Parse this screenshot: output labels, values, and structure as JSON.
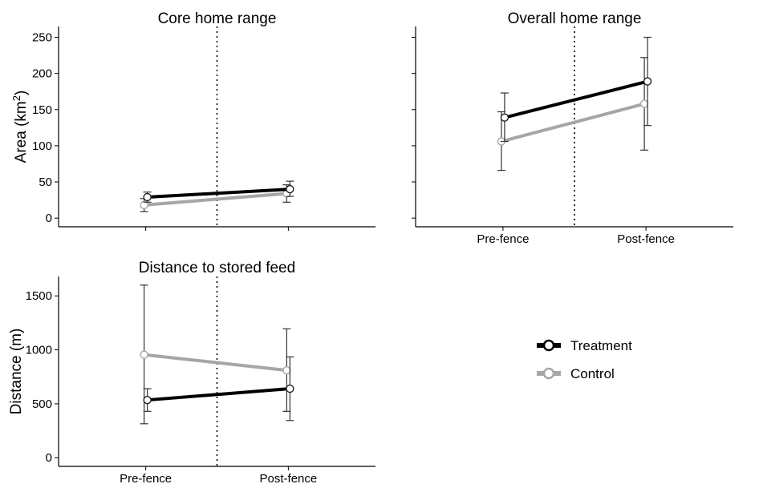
{
  "chart_data": [
    {
      "type": "line",
      "title": "Core home range",
      "ylabel": "Area (km",
      "ylabel_sup": "2",
      "ylabel_close": ")",
      "categories": [
        "Pre-fence",
        "Post-fence"
      ],
      "show_x_tick_labels": false,
      "ylim": [
        -12,
        265
      ],
      "yticks": [
        0,
        50,
        100,
        150,
        200,
        250
      ],
      "series": [
        {
          "name": "Treatment",
          "color": "#000000",
          "values": [
            29,
            40
          ],
          "err_low": [
            22,
            30
          ],
          "err_high": [
            36,
            51
          ]
        },
        {
          "name": "Control",
          "color": "#a6a6a6",
          "values": [
            18,
            34
          ],
          "err_low": [
            9,
            22
          ],
          "err_high": [
            27,
            46
          ]
        }
      ]
    },
    {
      "type": "line",
      "title": "Overall home range",
      "ylabel": "",
      "categories": [
        "Pre-fence",
        "Post-fence"
      ],
      "show_x_tick_labels": true,
      "show_y_tick_labels": false,
      "ylim": [
        -12,
        265
      ],
      "yticks": [
        0,
        50,
        100,
        150,
        200,
        250
      ],
      "series": [
        {
          "name": "Treatment",
          "color": "#000000",
          "values": [
            139,
            189
          ],
          "err_low": [
            106,
            128
          ],
          "err_high": [
            173,
            250
          ]
        },
        {
          "name": "Control",
          "color": "#a6a6a6",
          "values": [
            106,
            158
          ],
          "err_low": [
            66,
            94
          ],
          "err_high": [
            147,
            222
          ]
        }
      ]
    },
    {
      "type": "line",
      "title": "Distance to stored feed",
      "ylabel": "Distance (m)",
      "categories": [
        "Pre-fence",
        "Post-fence"
      ],
      "show_x_tick_labels": true,
      "ylim": [
        -80,
        1680
      ],
      "yticks": [
        0,
        500,
        1000,
        1500
      ],
      "series": [
        {
          "name": "Treatment",
          "color": "#000000",
          "values": [
            535,
            640
          ],
          "err_low": [
            430,
            345
          ],
          "err_high": [
            640,
            935
          ]
        },
        {
          "name": "Control",
          "color": "#a6a6a6",
          "values": [
            955,
            810
          ],
          "err_low": [
            315,
            430
          ],
          "err_high": [
            1600,
            1195
          ]
        }
      ]
    }
  ],
  "legend": [
    {
      "label": "Treatment",
      "color": "#000000"
    },
    {
      "label": "Control",
      "color": "#a6a6a6"
    }
  ]
}
